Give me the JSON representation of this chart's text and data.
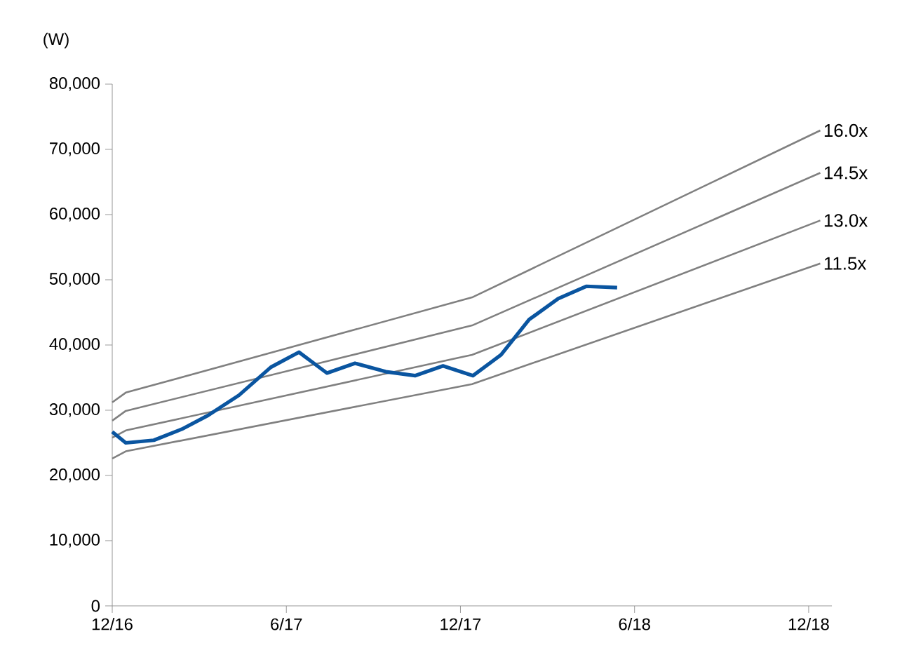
{
  "chart_data": {
    "type": "line",
    "ylabel": "(W)",
    "ylim": [
      0,
      80000
    ],
    "yticks": [
      {
        "value": 0,
        "label": "0"
      },
      {
        "value": 10000,
        "label": "10,000"
      },
      {
        "value": 20000,
        "label": "20,000"
      },
      {
        "value": 30000,
        "label": "30,000"
      },
      {
        "value": 40000,
        "label": "40,000"
      },
      {
        "value": 50000,
        "label": "50,000"
      },
      {
        "value": 60000,
        "label": "60,000"
      },
      {
        "value": 70000,
        "label": "70,000"
      },
      {
        "value": 80000,
        "label": "80,000"
      }
    ],
    "xlim": [
      "2016-12-01",
      "2018-12-25"
    ],
    "xticks": [
      {
        "value": "2016-12-01",
        "label": "12/16"
      },
      {
        "value": "2017-06-01",
        "label": "6/17"
      },
      {
        "value": "2017-12-01",
        "label": "12/17"
      },
      {
        "value": "2018-06-01",
        "label": "6/18"
      },
      {
        "value": "2018-12-01",
        "label": "12/18"
      }
    ],
    "grid": false,
    "legend": false,
    "marker": "none",
    "line_style": "solid",
    "series": [
      {
        "name": "16.0x",
        "color": "#808080",
        "x": [
          "2016-12-01",
          "2016-12-15",
          "2017-12-13",
          "2018-12-13"
        ],
        "values": [
          31200,
          32700,
          47300,
          72900
        ]
      },
      {
        "name": "14.5x",
        "color": "#808080",
        "x": [
          "2016-12-01",
          "2016-12-15",
          "2017-12-13",
          "2018-12-13"
        ],
        "values": [
          28400,
          29900,
          43000,
          66400
        ]
      },
      {
        "name": "13.0x",
        "color": "#808080",
        "x": [
          "2016-12-01",
          "2016-12-15",
          "2017-12-13",
          "2018-12-13"
        ],
        "values": [
          25800,
          26900,
          38500,
          59100
        ]
      },
      {
        "name": "11.5x",
        "color": "#808080",
        "x": [
          "2016-12-01",
          "2016-12-15",
          "2017-12-13",
          "2018-12-13"
        ],
        "values": [
          22600,
          23700,
          34000,
          52500
        ]
      },
      {
        "color": "#0a55a0",
        "x": [
          "2016-12-01",
          "2016-12-15",
          "2017-01-14",
          "2017-02-13",
          "2017-03-10",
          "2017-04-12",
          "2017-05-15",
          "2017-06-14",
          "2017-07-13",
          "2017-08-12",
          "2017-09-14",
          "2017-10-14",
          "2017-11-13",
          "2017-12-14",
          "2018-01-13",
          "2018-02-12",
          "2018-03-12",
          "2018-04-11",
          "2018-05-13"
        ],
        "values": [
          26700,
          25000,
          25400,
          27100,
          29200,
          32300,
          36600,
          38900,
          35700,
          37200,
          35900,
          35300,
          36800,
          35300,
          38500,
          43900,
          47100,
          49000,
          48800
        ]
      }
    ]
  }
}
